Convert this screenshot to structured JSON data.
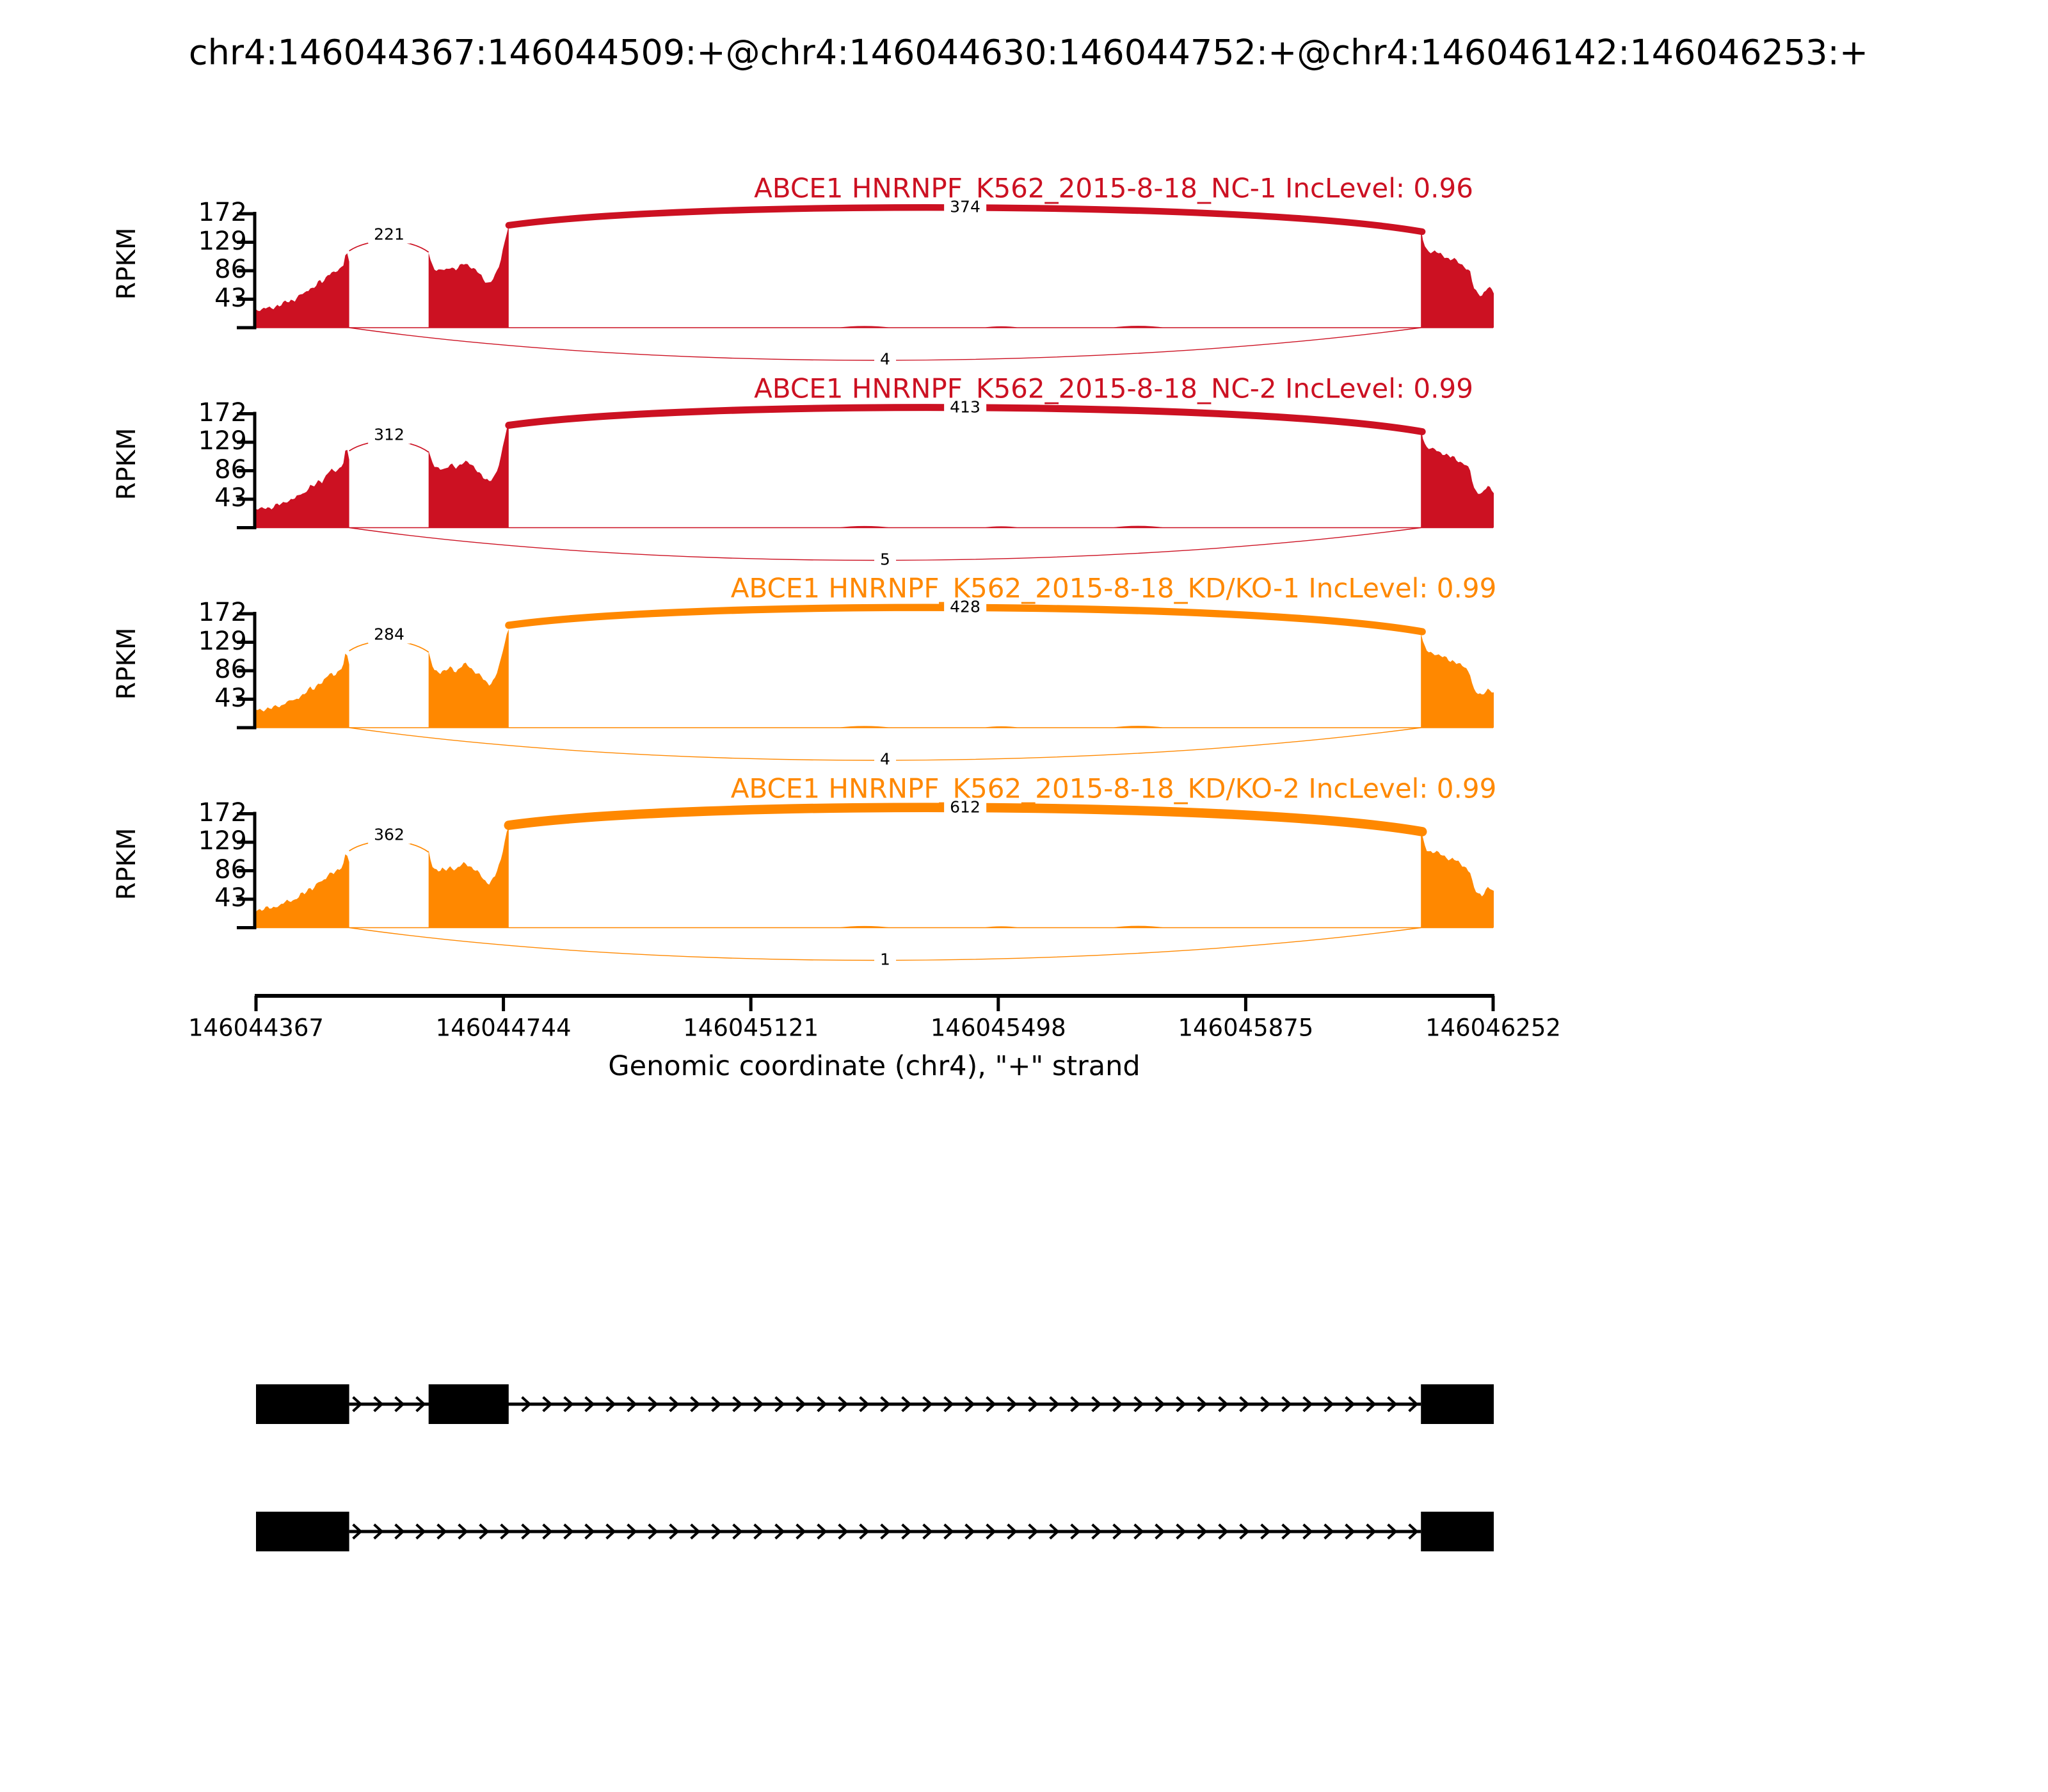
{
  "title": "chr4:146044367:146044509:+@chr4:146044630:146044752:+@chr4:146046142:146046253:+",
  "chart_data": {
    "type": "area",
    "plot_kind": "sashimi-coverage-with-junction-arcs",
    "ylabel": "RPKM",
    "yticks": [
      43,
      86,
      129,
      172
    ],
    "ylim": [
      0,
      172
    ],
    "xlabel": "Genomic coordinate (chr4), \"+\" strand",
    "xticks": [
      "146044367",
      "146044744",
      "146045121",
      "146045498",
      "146045875",
      "146046252"
    ],
    "x_range": [
      146044367,
      146046252
    ],
    "grid": false,
    "legend": "none",
    "tracks": [
      {
        "label": "ABCE1 HNRNPF_K562_2015-8-18_NC-1 IncLevel: 0.96",
        "color": "#CC1122",
        "inclusion_level": 0.96,
        "junctions": [
          {
            "from_to": "exon1-exon2",
            "count": 221,
            "position": "above-intron1"
          },
          {
            "from_to": "exon2-exon3",
            "count": 374,
            "position": "top-arc"
          },
          {
            "from_to": "exon1-exon3",
            "count": 4,
            "position": "bottom-arc"
          }
        ]
      },
      {
        "label": "ABCE1 HNRNPF_K562_2015-8-18_NC-2 IncLevel: 0.99",
        "color": "#CC1122",
        "inclusion_level": 0.99,
        "junctions": [
          {
            "from_to": "exon1-exon2",
            "count": 312,
            "position": "above-intron1"
          },
          {
            "from_to": "exon2-exon3",
            "count": 413,
            "position": "top-arc"
          },
          {
            "from_to": "exon1-exon3",
            "count": 5,
            "position": "bottom-arc"
          }
        ]
      },
      {
        "label": "ABCE1 HNRNPF_K562_2015-8-18_KD/KO-1 IncLevel: 0.99",
        "color": "#FF8800",
        "inclusion_level": 0.99,
        "junctions": [
          {
            "from_to": "exon1-exon2",
            "count": 284,
            "position": "above-intron1"
          },
          {
            "from_to": "exon2-exon3",
            "count": 428,
            "position": "top-arc"
          },
          {
            "from_to": "exon1-exon3",
            "count": 4,
            "position": "bottom-arc"
          }
        ]
      },
      {
        "label": "ABCE1 HNRNPF_K562_2015-8-18_KD/KO-2 IncLevel: 0.99",
        "color": "#FF8800",
        "inclusion_level": 0.99,
        "junctions": [
          {
            "from_to": "exon1-exon2",
            "count": 362,
            "position": "above-intron1"
          },
          {
            "from_to": "exon2-exon3",
            "count": 612,
            "position": "top-arc"
          },
          {
            "from_to": "exon1-exon3",
            "count": 1,
            "position": "bottom-arc"
          }
        ]
      }
    ],
    "exons_genomic": [
      [
        146044367,
        146044509
      ],
      [
        146044630,
        146044752
      ],
      [
        146046142,
        146046253
      ]
    ],
    "coverage_profiles_rpkm": {
      "exon1": [
        27,
        28,
        27,
        29,
        30,
        29,
        31,
        34,
        33,
        36,
        40,
        39,
        43,
        42,
        46,
        51,
        50,
        56,
        61,
        59,
        64,
        70,
        68,
        74,
        81,
        84,
        82,
        85,
        88,
        95,
        118,
        100
      ],
      "exon2": [
        115,
        98,
        90,
        87,
        85,
        88,
        86,
        90,
        93,
        89,
        87,
        91,
        95,
        98,
        96,
        93,
        89,
        86,
        83,
        79,
        73,
        69,
        67,
        71,
        77,
        88,
        100,
        120,
        140,
        152
      ],
      "exon3": [
        148,
        126,
        118,
        116,
        114,
        115,
        112,
        110,
        108,
        106,
        103,
        104,
        101,
        98,
        95,
        93,
        88,
        83,
        60,
        54,
        51,
        49,
        56,
        60,
        58,
        53
      ]
    },
    "track_profile_scale": [
      1.0,
      1.03,
      0.98,
      1.0
    ],
    "intron_bumps": [
      [
        0.36,
        0.42,
        2.5
      ],
      [
        0.52,
        0.56,
        2.0
      ],
      [
        0.66,
        0.72,
        2.8
      ]
    ],
    "isoforms": [
      {
        "exons": [
          [
            146044367,
            146044509
          ],
          [
            146044630,
            146044752
          ],
          [
            146046142,
            146046253
          ]
        ]
      },
      {
        "exons": [
          [
            146044367,
            146044509
          ],
          [
            146046142,
            146046253
          ]
        ]
      }
    ]
  }
}
